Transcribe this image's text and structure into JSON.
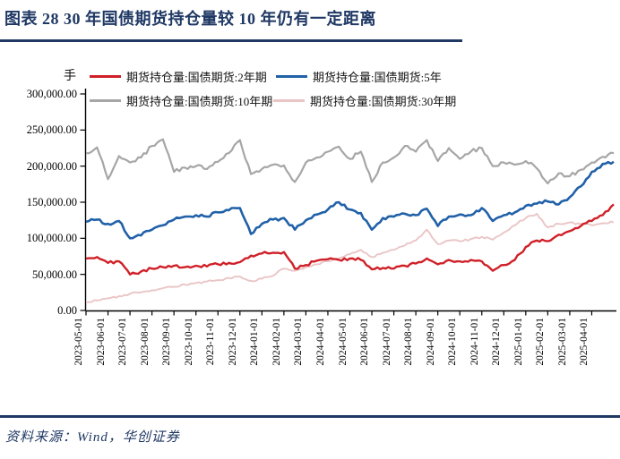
{
  "title": "图表 28  30 年国债期货持仓量较 10 年仍有一定距离",
  "source": "资料来源：Wind，华创证券",
  "colors": {
    "accent_navy": "#1F3864",
    "axis": "#000000"
  },
  "chart_data": {
    "type": "line",
    "title": "",
    "unit_label": "手",
    "grid": false,
    "legend_position": "top",
    "ylim": [
      0,
      300000
    ],
    "y_ticks": [
      "300,000.00",
      "250,000.00",
      "200,000.00",
      "150,000.00",
      "100,000.00",
      "50,000.00",
      "0.00"
    ],
    "x_ticks": [
      "2023-05-01",
      "2023-06-01",
      "2023-07-01",
      "2023-08-01",
      "2023-09-01",
      "2023-10-01",
      "2023-11-01",
      "2023-12-01",
      "2024-01-01",
      "2024-02-01",
      "2024-03-01",
      "2024-04-01",
      "2024-05-01",
      "2024-06-01",
      "2024-07-01",
      "2024-08-01",
      "2024-09-01",
      "2024-10-01",
      "2024-11-01",
      "2024-12-01",
      "2025-01-01",
      "2025-02-01",
      "2025-03-01",
      "2025-04-01"
    ],
    "x": [
      "2023-05-01",
      "2023-05-16",
      "2023-06-01",
      "2023-06-16",
      "2023-07-01",
      "2023-07-16",
      "2023-08-01",
      "2023-08-16",
      "2023-09-01",
      "2023-09-16",
      "2023-10-01",
      "2023-10-16",
      "2023-11-01",
      "2023-11-16",
      "2023-12-01",
      "2023-12-16",
      "2024-01-01",
      "2024-01-16",
      "2024-02-01",
      "2024-02-16",
      "2024-03-01",
      "2024-03-16",
      "2024-04-01",
      "2024-04-16",
      "2024-05-01",
      "2024-05-16",
      "2024-06-01",
      "2024-06-16",
      "2024-07-01",
      "2024-07-16",
      "2024-08-01",
      "2024-08-16",
      "2024-09-01",
      "2024-09-16",
      "2024-10-01",
      "2024-10-16",
      "2024-11-01",
      "2024-11-16",
      "2024-12-01",
      "2024-12-16",
      "2025-01-01",
      "2025-01-16",
      "2025-02-01",
      "2025-02-16",
      "2025-03-01",
      "2025-03-16",
      "2025-04-01",
      "2025-04-16",
      "2025-04-25"
    ],
    "series": [
      {
        "name": "期货持仓量:国债期货:2年期",
        "color": "#D02028",
        "values": [
          72000,
          74000,
          66000,
          68000,
          50000,
          54000,
          58000,
          60000,
          62000,
          60000,
          62000,
          61000,
          64000,
          66000,
          67000,
          76000,
          79000,
          80000,
          81000,
          58000,
          63000,
          69000,
          71000,
          70000,
          72000,
          70000,
          57000,
          59000,
          58000,
          62000,
          65000,
          72000,
          64000,
          70000,
          68000,
          70000,
          68000,
          55000,
          63000,
          70000,
          88000,
          97000,
          96000,
          105000,
          110000,
          117000,
          124000,
          132000,
          147000
        ]
      },
      {
        "name": "期货持仓量:国债期货:5年",
        "color": "#2161A8",
        "values": [
          123000,
          126000,
          120000,
          124000,
          100000,
          104000,
          112000,
          118000,
          126000,
          130000,
          132000,
          130000,
          136000,
          139000,
          142000,
          106000,
          120000,
          126000,
          128000,
          112000,
          125000,
          133000,
          140000,
          150000,
          140000,
          135000,
          112000,
          128000,
          130000,
          134000,
          132000,
          141000,
          117000,
          130000,
          133000,
          132000,
          142000,
          124000,
          132000,
          136000,
          145000,
          148000,
          151000,
          147000,
          157000,
          172000,
          192000,
          203000,
          206000
        ]
      },
      {
        "name": "期货持仓量:国债期货:10年期",
        "color": "#A6A6A6",
        "values": [
          218000,
          226000,
          182000,
          214000,
          205000,
          212000,
          228000,
          237000,
          192000,
          198000,
          200000,
          196000,
          206000,
          218000,
          236000,
          189000,
          196000,
          202000,
          201000,
          178000,
          205000,
          212000,
          220000,
          227000,
          210000,
          220000,
          178000,
          205000,
          212000,
          228000,
          220000,
          236000,
          207000,
          225000,
          210000,
          220000,
          225000,
          200000,
          205000,
          202000,
          207000,
          197000,
          176000,
          190000,
          186000,
          195000,
          205000,
          213000,
          218000
        ]
      },
      {
        "name": "期货持仓量:国债期货:30年期",
        "color": "#EAC5C6",
        "values": [
          11000,
          14000,
          17000,
          20000,
          23000,
          25000,
          28000,
          31000,
          33000,
          36000,
          38000,
          40000,
          42000,
          45000,
          47000,
          41000,
          44000,
          48000,
          58000,
          55000,
          60000,
          64000,
          68000,
          72000,
          78000,
          84000,
          74000,
          80000,
          84000,
          90000,
          97000,
          112000,
          92000,
          97000,
          96000,
          99000,
          102000,
          98000,
          108000,
          118000,
          128000,
          134000,
          115000,
          120000,
          122000,
          120000,
          118000,
          121000,
          122000
        ]
      }
    ]
  }
}
